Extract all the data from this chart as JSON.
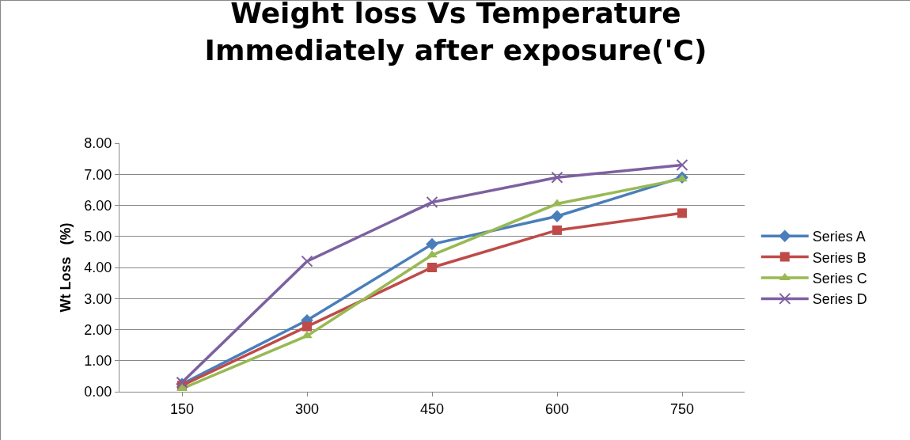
{
  "chart_data": {
    "type": "line",
    "title": "Weight loss Vs Temperature\nImmediately after exposure('C)",
    "ylabel": "Wt Loss   (%)",
    "categories": [
      "150",
      "300",
      "450",
      "600",
      "750"
    ],
    "series": [
      {
        "name": "Series A",
        "color": "#4a7ebb",
        "marker": "diamond",
        "values": [
          0.25,
          2.3,
          4.75,
          5.65,
          6.9
        ]
      },
      {
        "name": "Series B",
        "color": "#be4b48",
        "marker": "square",
        "values": [
          0.2,
          2.1,
          4.0,
          5.2,
          5.75
        ]
      },
      {
        "name": "Series C",
        "color": "#98b954",
        "marker": "triangle",
        "values": [
          0.1,
          1.8,
          4.4,
          6.05,
          6.85
        ]
      },
      {
        "name": "Series D",
        "color": "#7d60a0",
        "marker": "cross",
        "values": [
          0.3,
          4.2,
          6.1,
          6.9,
          7.3
        ]
      }
    ],
    "ylim": [
      0,
      8
    ],
    "yticks": [
      {
        "value": 0,
        "label": "0.00"
      },
      {
        "value": 1,
        "label": "1.00"
      },
      {
        "value": 2,
        "label": "2.00"
      },
      {
        "value": 3,
        "label": "3.00"
      },
      {
        "value": 4,
        "label": "4.00"
      },
      {
        "value": 5,
        "label": "5.00"
      },
      {
        "value": 6,
        "label": "6.00"
      },
      {
        "value": 7,
        "label": "7.00"
      },
      {
        "value": 8,
        "label": "8.00"
      }
    ],
    "grid": "y",
    "legend": "right",
    "line_style": "solid"
  }
}
